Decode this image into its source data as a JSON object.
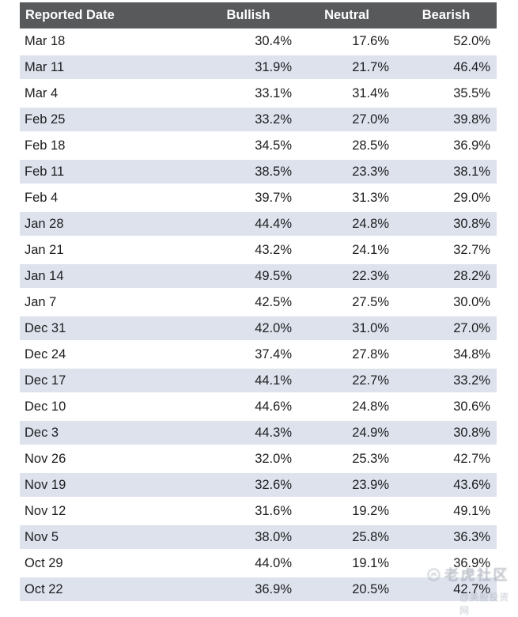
{
  "page": {
    "background": "#ffffff"
  },
  "colors": {
    "header_bg": "#58595b",
    "header_text": "#ffffff",
    "stripe_bg": "#dde2ed",
    "row_bg": "#ffffff",
    "body_text": "#1d1d1f",
    "watermark_text": "#979eab"
  },
  "watermark": {
    "logo_icon": "tiger-circle-icon",
    "community_name": "老虎社区",
    "handle": "@美股投资网"
  },
  "chart_data": {
    "type": "table",
    "unit": "%",
    "columns": [
      "Reported Date",
      "Bullish",
      "Neutral",
      "Bearish"
    ],
    "rows": [
      [
        "Mar 18",
        30.4,
        17.6,
        52.0
      ],
      [
        "Mar 11",
        31.9,
        21.7,
        46.4
      ],
      [
        "Mar 4",
        33.1,
        31.4,
        35.5
      ],
      [
        "Feb 25",
        33.2,
        27.0,
        39.8
      ],
      [
        "Feb 18",
        34.5,
        28.5,
        36.9
      ],
      [
        "Feb 11",
        38.5,
        23.3,
        38.1
      ],
      [
        "Feb 4",
        39.7,
        31.3,
        29.0
      ],
      [
        "Jan 28",
        44.4,
        24.8,
        30.8
      ],
      [
        "Jan 21",
        43.2,
        24.1,
        32.7
      ],
      [
        "Jan 14",
        49.5,
        22.3,
        28.2
      ],
      [
        "Jan 7",
        42.5,
        27.5,
        30.0
      ],
      [
        "Dec 31",
        42.0,
        31.0,
        27.0
      ],
      [
        "Dec 24",
        37.4,
        27.8,
        34.8
      ],
      [
        "Dec 17",
        44.1,
        22.7,
        33.2
      ],
      [
        "Dec 10",
        44.6,
        24.8,
        30.6
      ],
      [
        "Dec 3",
        44.3,
        24.9,
        30.8
      ],
      [
        "Nov 26",
        32.0,
        25.3,
        42.7
      ],
      [
        "Nov 19",
        32.6,
        23.9,
        43.6
      ],
      [
        "Nov 12",
        31.6,
        19.2,
        49.1
      ],
      [
        "Nov 5",
        38.0,
        25.8,
        36.3
      ],
      [
        "Oct 29",
        44.0,
        19.1,
        36.9
      ],
      [
        "Oct 22",
        36.9,
        20.5,
        42.7
      ]
    ]
  }
}
